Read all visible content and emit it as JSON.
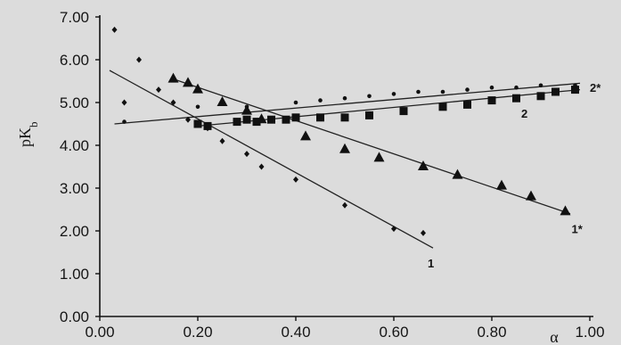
{
  "chart_data": {
    "type": "scatter",
    "title": "",
    "xlabel": "α",
    "ylabel": "pK",
    "ylabel_sub": "b",
    "xlim": [
      0.0,
      1.0
    ],
    "ylim": [
      0.0,
      7.0
    ],
    "x_ticks": [
      "0.00",
      "0.20",
      "0.40",
      "0.60",
      "0.80",
      "1.00"
    ],
    "y_ticks": [
      "0.00",
      "1.00",
      "2.00",
      "3.00",
      "4.00",
      "5.00",
      "6.00",
      "7.00"
    ],
    "series": [
      {
        "name": "1",
        "marker": "diamond",
        "points": [
          [
            0.03,
            6.7
          ],
          [
            0.08,
            6.0
          ],
          [
            0.05,
            5.0
          ],
          [
            0.12,
            5.3
          ],
          [
            0.15,
            5.0
          ],
          [
            0.18,
            4.6
          ],
          [
            0.22,
            4.4
          ],
          [
            0.25,
            4.1
          ],
          [
            0.3,
            3.8
          ],
          [
            0.33,
            3.5
          ],
          [
            0.4,
            3.2
          ],
          [
            0.5,
            2.6
          ],
          [
            0.6,
            2.05
          ],
          [
            0.66,
            1.95
          ]
        ],
        "fit": [
          [
            0.02,
            5.75
          ],
          [
            0.68,
            1.6
          ]
        ]
      },
      {
        "name": "1*",
        "marker": "triangle",
        "points": [
          [
            0.15,
            5.55
          ],
          [
            0.18,
            5.45
          ],
          [
            0.2,
            5.3
          ],
          [
            0.25,
            5.0
          ],
          [
            0.3,
            4.8
          ],
          [
            0.33,
            4.6
          ],
          [
            0.42,
            4.2
          ],
          [
            0.5,
            3.9
          ],
          [
            0.57,
            3.7
          ],
          [
            0.66,
            3.5
          ],
          [
            0.73,
            3.3
          ],
          [
            0.82,
            3.05
          ],
          [
            0.88,
            2.8
          ],
          [
            0.95,
            2.45
          ]
        ],
        "fit": [
          [
            0.15,
            5.55
          ],
          [
            0.96,
            2.4
          ]
        ]
      },
      {
        "name": "2",
        "marker": "square",
        "points": [
          [
            0.2,
            4.5
          ],
          [
            0.22,
            4.45
          ],
          [
            0.28,
            4.55
          ],
          [
            0.3,
            4.6
          ],
          [
            0.32,
            4.55
          ],
          [
            0.35,
            4.6
          ],
          [
            0.38,
            4.6
          ],
          [
            0.4,
            4.65
          ],
          [
            0.45,
            4.65
          ],
          [
            0.5,
            4.65
          ],
          [
            0.55,
            4.7
          ],
          [
            0.62,
            4.8
          ],
          [
            0.7,
            4.9
          ],
          [
            0.75,
            4.95
          ],
          [
            0.8,
            5.05
          ],
          [
            0.85,
            5.1
          ],
          [
            0.9,
            5.15
          ],
          [
            0.93,
            5.25
          ],
          [
            0.97,
            5.3
          ]
        ],
        "fit": [
          [
            0.2,
            4.45
          ],
          [
            0.98,
            5.3
          ]
        ]
      },
      {
        "name": "2*",
        "marker": "dot",
        "points": [
          [
            0.05,
            4.55
          ],
          [
            0.2,
            4.9
          ],
          [
            0.3,
            4.9
          ],
          [
            0.4,
            5.0
          ],
          [
            0.45,
            5.05
          ],
          [
            0.5,
            5.1
          ],
          [
            0.55,
            5.15
          ],
          [
            0.6,
            5.2
          ],
          [
            0.65,
            5.25
          ],
          [
            0.7,
            5.25
          ],
          [
            0.75,
            5.3
          ],
          [
            0.8,
            5.35
          ],
          [
            0.85,
            5.35
          ],
          [
            0.9,
            5.4
          ],
          [
            0.97,
            5.4
          ]
        ],
        "fit": [
          [
            0.03,
            4.5
          ],
          [
            0.98,
            5.45
          ]
        ]
      }
    ],
    "grid": false,
    "legend": "none"
  }
}
